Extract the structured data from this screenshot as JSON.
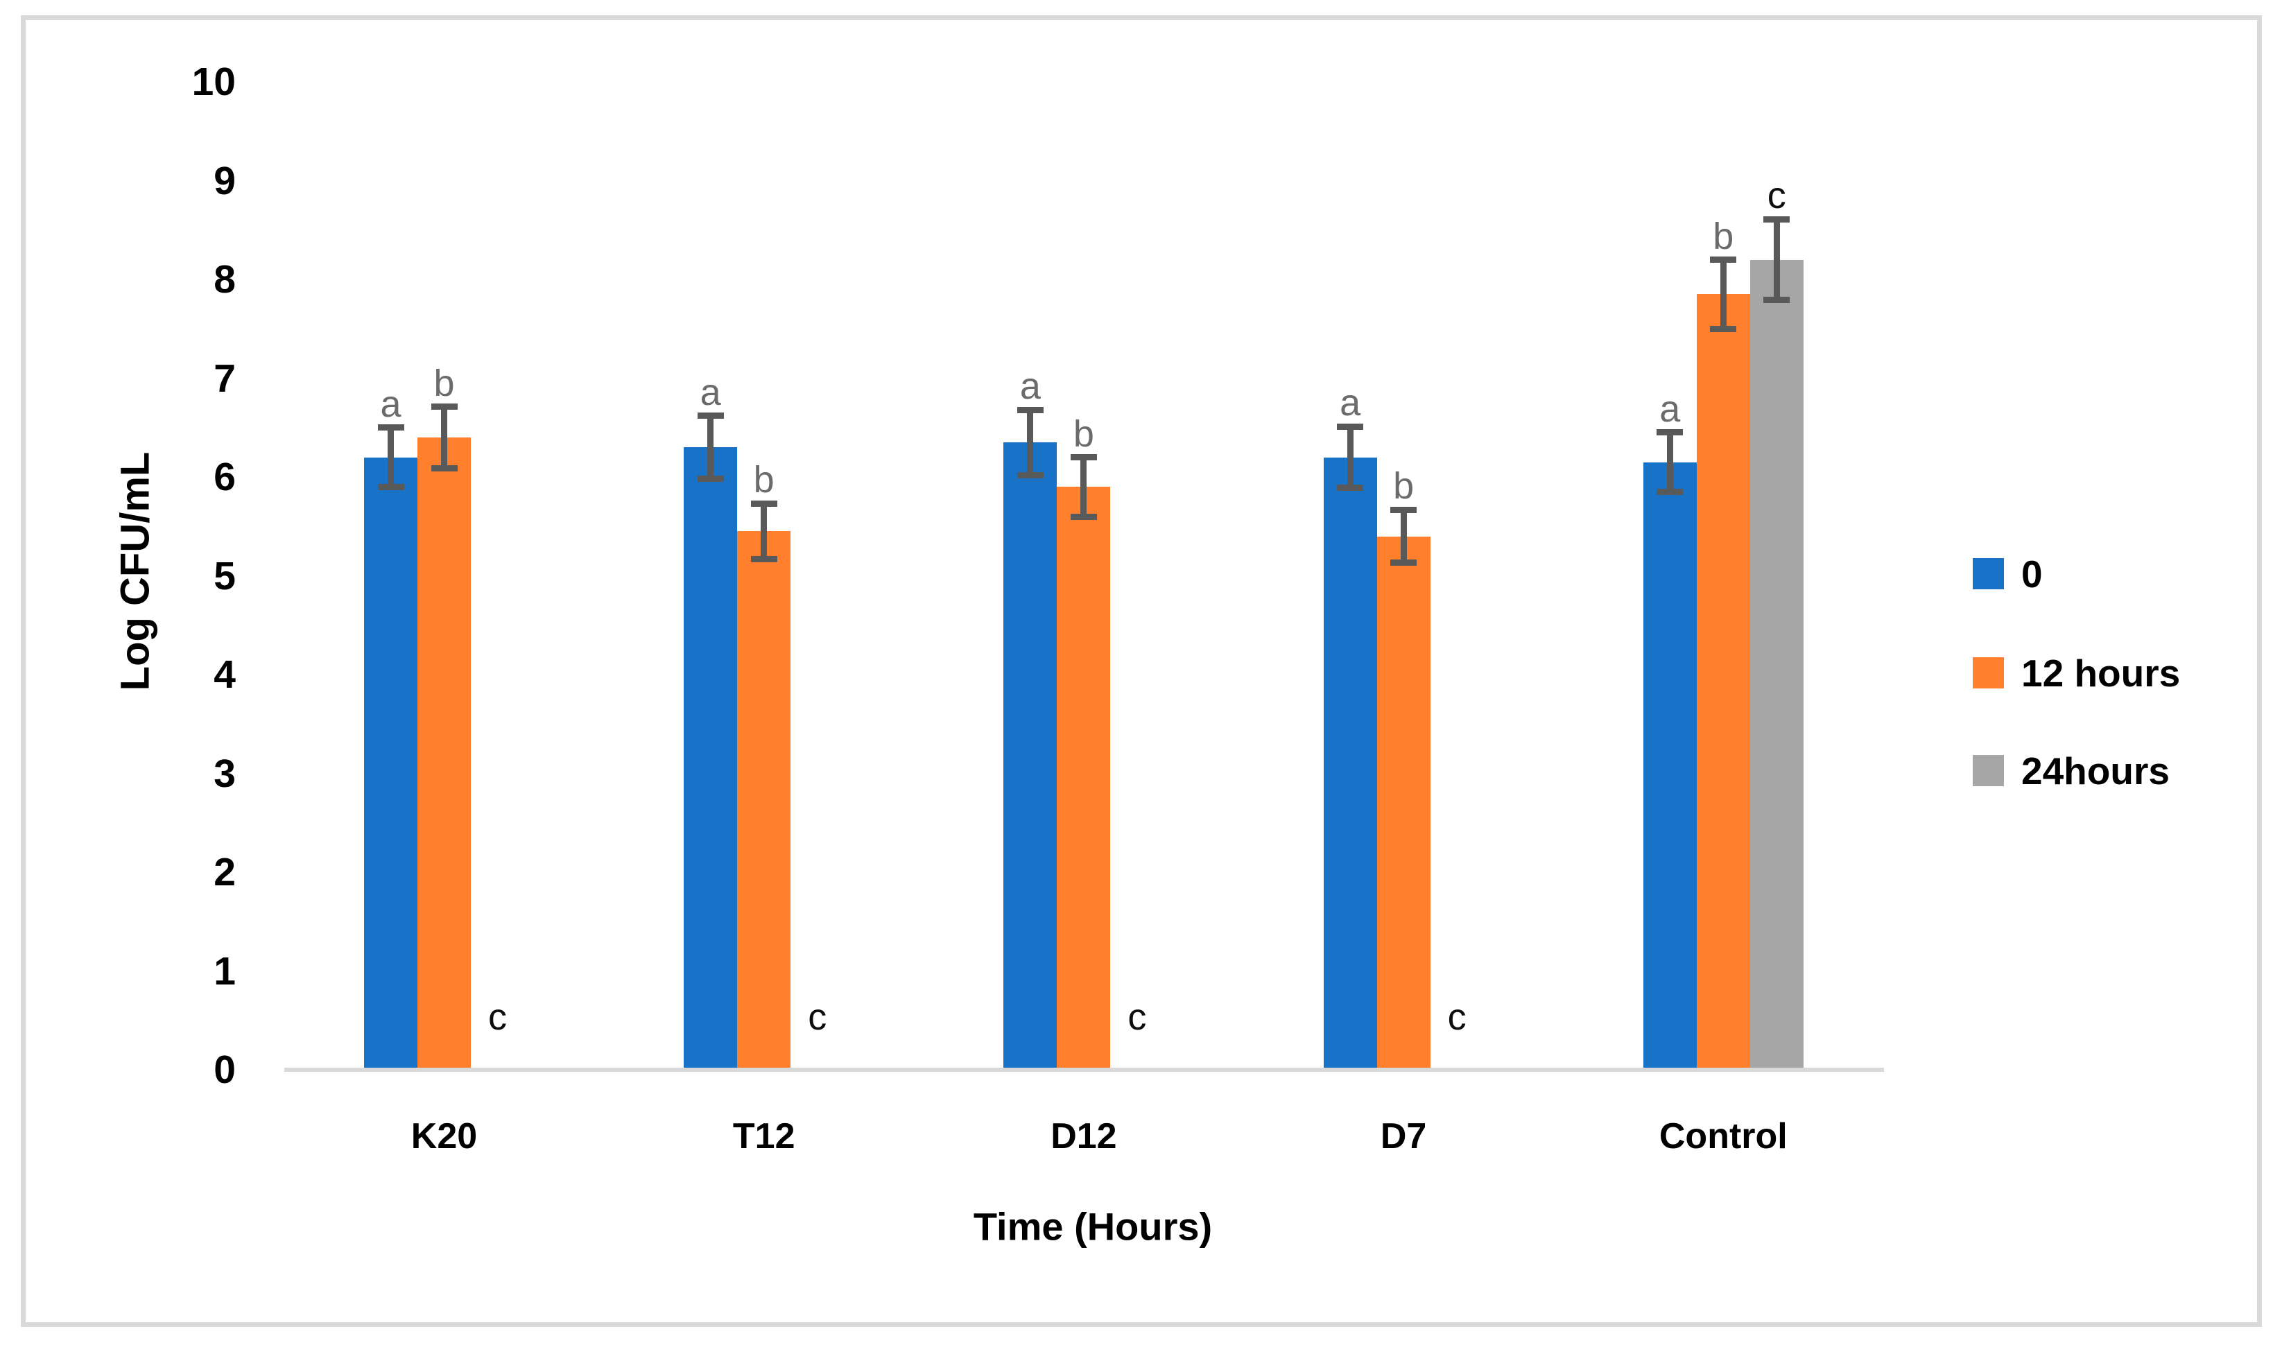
{
  "figure": {
    "background": "#FFFFFF",
    "border_color": "#D9D9D9"
  },
  "chart_data": {
    "type": "bar",
    "title": "",
    "xlabel": "Time (Hours)",
    "ylabel": "Log CFU/mL",
    "ylim": [
      0,
      10
    ],
    "yticks": [
      0,
      1,
      2,
      3,
      4,
      5,
      6,
      7,
      8,
      9,
      10
    ],
    "grid": false,
    "legend_position": "right-middle",
    "axis_line_color": "#D9D9D9",
    "error_bar_color": "#595959",
    "categories": [
      "K20",
      "T12",
      "D12",
      "D7",
      "Control"
    ],
    "series": [
      {
        "name": "0",
        "color": "#1772C8",
        "values": [
          6.2,
          6.3,
          6.35,
          6.2,
          6.15
        ],
        "errors": [
          0.3,
          0.32,
          0.33,
          0.31,
          0.3
        ],
        "letters": [
          "a",
          "a",
          "a",
          "a",
          "a"
        ],
        "letter_color": "#6B6B6B"
      },
      {
        "name": "12 hours",
        "color": "#FF7F2D",
        "values": [
          6.4,
          5.45,
          5.9,
          5.4,
          7.85
        ],
        "errors": [
          0.31,
          0.28,
          0.3,
          0.27,
          0.35
        ],
        "letters": [
          "b",
          "b",
          "b",
          "b",
          "b"
        ],
        "letter_color": "#6B6B6B"
      },
      {
        "name": "24hours",
        "color": "#A6A6A6",
        "values": [
          0,
          0,
          0,
          0,
          8.2
        ],
        "errors": [
          0,
          0,
          0,
          0,
          0.41
        ],
        "letters": [
          "c",
          "c",
          "c",
          "c",
          "c"
        ],
        "letter_color": "#0D0D0D"
      }
    ]
  }
}
